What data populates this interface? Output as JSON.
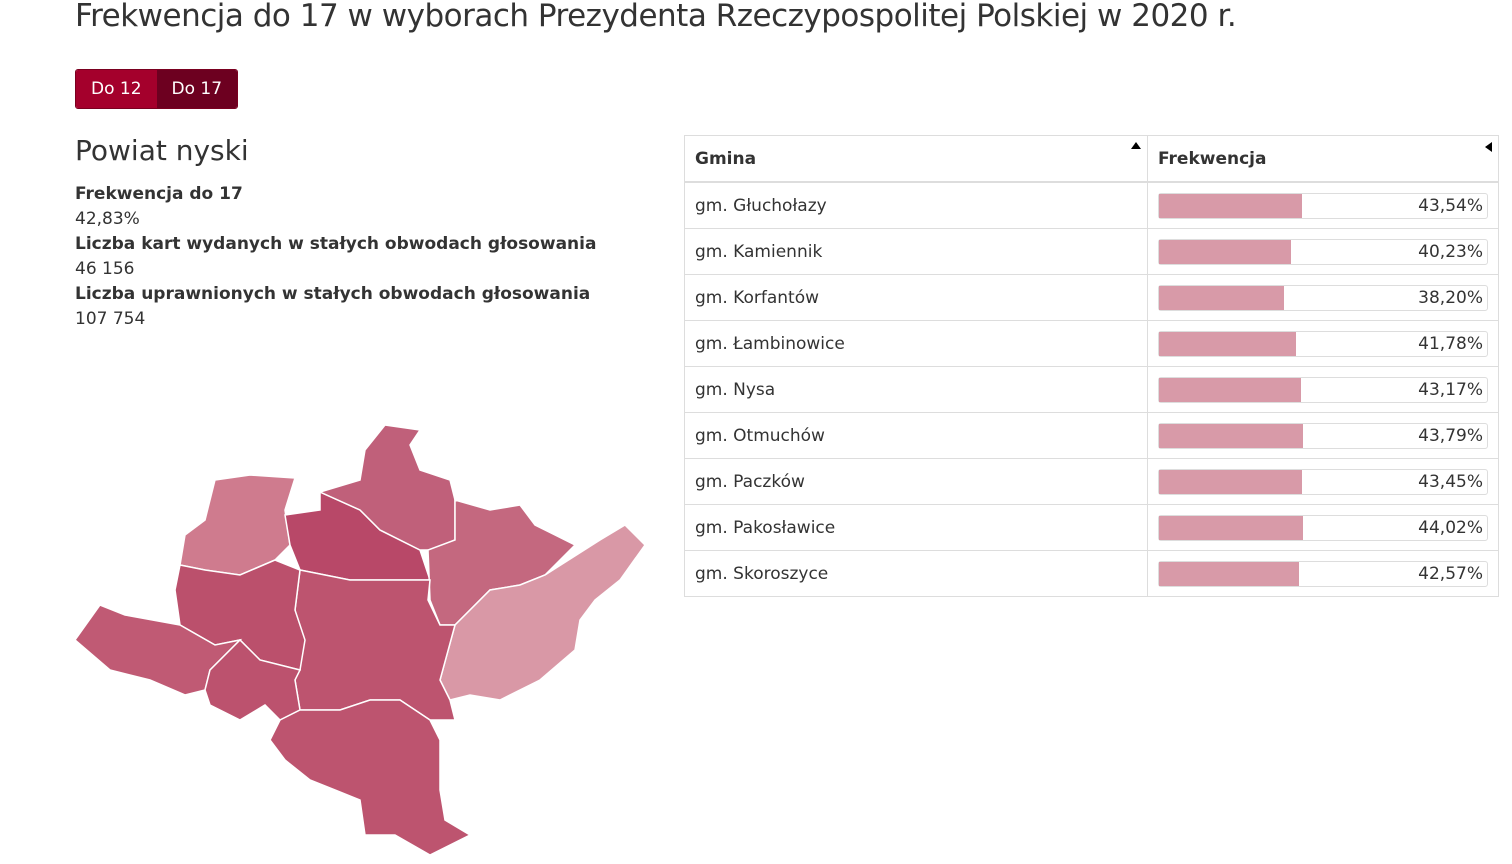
{
  "header": {
    "title": "Frekwencja do 17 w wyborach Prezydenta Rzeczypospolitej Polskiej w 2020 r."
  },
  "buttons": [
    "Do 12",
    "Do 17"
  ],
  "summary": {
    "heading": "Powiat nyski",
    "stats": [
      {
        "label": "Frekwencja do 17",
        "value": "42,83%"
      },
      {
        "label": "Liczba kart wydanych w stałych obwodach głosowania",
        "value": "46 156"
      },
      {
        "label": "Liczba uprawnionych w stałych obwodach głosowania",
        "value": "107 754"
      }
    ]
  },
  "table": {
    "columns": [
      "Gmina",
      "Frekwencja"
    ],
    "xlim": [
      0,
      100
    ],
    "rows": [
      {
        "name": "gm. Głuchołazy",
        "value": 43.54,
        "value_label": "43,54%"
      },
      {
        "name": "gm. Kamiennik",
        "value": 40.23,
        "value_label": "40,23%"
      },
      {
        "name": "gm. Korfantów",
        "value": 38.2,
        "value_label": "38,20%"
      },
      {
        "name": "gm. Łambinowice",
        "value": 41.78,
        "value_label": "41,78%"
      },
      {
        "name": "gm. Nysa",
        "value": 43.17,
        "value_label": "43,17%"
      },
      {
        "name": "gm. Otmuchów",
        "value": 43.79,
        "value_label": "43,79%"
      },
      {
        "name": "gm. Paczków",
        "value": 43.45,
        "value_label": "43,45%"
      },
      {
        "name": "gm. Pakosławice",
        "value": 44.02,
        "value_label": "44,02%"
      },
      {
        "name": "gm. Skoroszyce",
        "value": 42.57,
        "value_label": "42,57%"
      }
    ]
  }
}
